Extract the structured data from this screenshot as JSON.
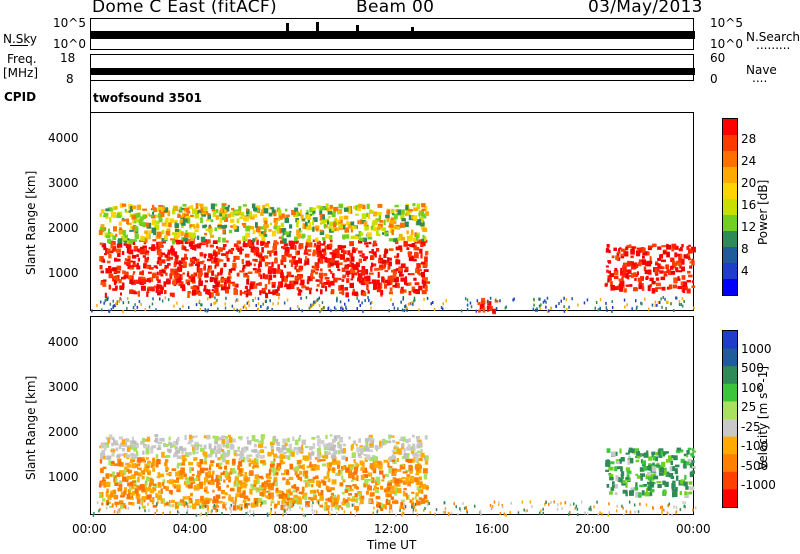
{
  "header": {
    "station": "Dome C East (fitACF)",
    "beam": "Beam 00",
    "date": "03/May/2013"
  },
  "strips": {
    "nsky": {
      "label": "N.Sky",
      "ticks_left": [
        "10^5",
        "10^0"
      ],
      "ticks_right": [
        "10^5",
        "10^0"
      ],
      "right_label": "N.Search",
      "right_dots": "........."
    },
    "freq": {
      "label_line1": "Freq.",
      "label_line2": "[MHz]",
      "ticks_left": [
        "18",
        "8"
      ],
      "ticks_right": [
        "60",
        "0"
      ],
      "right_label": "Nave",
      "right_dots": "...."
    },
    "cpid": {
      "label": "CPID",
      "value": "twofsound 3501"
    }
  },
  "x_axis": {
    "label": "Time UT",
    "ticks": [
      "00:00",
      "04:00",
      "08:00",
      "12:00",
      "16:00",
      "20:00",
      "00:00"
    ]
  },
  "chart_data": [
    {
      "type": "heatmap",
      "title": "",
      "xlabel": "Time UT",
      "ylabel": "Slant Range [km]",
      "x_range_hours": [
        0,
        24
      ],
      "ylim": [
        180,
        4600
      ],
      "y_ticks": [
        "4000",
        "3000",
        "2000",
        "1000"
      ],
      "colorbar": {
        "label": "Power [dB]",
        "ticks": [
          "28",
          "24",
          "20",
          "16",
          "12",
          "8",
          "4"
        ],
        "colors": [
          "#ff0000",
          "#ff3a00",
          "#ff7000",
          "#ffaa00",
          "#ffd400",
          "#c8e000",
          "#6fd021",
          "#2e8b57",
          "#1f5c9c",
          "#1f3dc8",
          "#0000ff"
        ]
      },
      "series": [
        {
          "start_h": 0.3,
          "end_h": 13.3,
          "range_min": 600,
          "range_max": 1800,
          "level": "high"
        },
        {
          "start_h": 0.3,
          "end_h": 13.3,
          "range_min": 1800,
          "range_max": 2600,
          "level": "mid"
        },
        {
          "start_h": 15.3,
          "end_h": 16.1,
          "range_min": 200,
          "range_max": 500,
          "level": "high"
        },
        {
          "start_h": 20.4,
          "end_h": 23.9,
          "range_min": 700,
          "range_max": 1700,
          "level": "high"
        }
      ]
    },
    {
      "type": "heatmap",
      "title": "",
      "xlabel": "Time UT",
      "ylabel": "Slant Range [km]",
      "x_range_hours": [
        0,
        24
      ],
      "ylim": [
        180,
        4600
      ],
      "y_ticks": [
        "4000",
        "3000",
        "2000",
        "1000"
      ],
      "colorbar": {
        "label": "Velocity [m s^-1]",
        "ticks": [
          "1000",
          "500",
          "100",
          "25",
          "-25",
          "-100",
          "-500",
          "-1000"
        ],
        "colors": [
          "#1f3dc8",
          "#1f5c9c",
          "#2e8b57",
          "#3cc43c",
          "#a8e060",
          "#c8c8c8",
          "#ffaa00",
          "#ff8000",
          "#ff4000",
          "#ff0000"
        ]
      },
      "series": [
        {
          "start_h": 0.3,
          "end_h": 13.3,
          "range_min": 400,
          "range_max": 1500,
          "level": "negative"
        },
        {
          "start_h": 0.3,
          "end_h": 13.3,
          "range_min": 1500,
          "range_max": 2000,
          "level": "near-zero"
        },
        {
          "start_h": 20.4,
          "end_h": 23.9,
          "range_min": 700,
          "range_max": 1700,
          "level": "positive"
        }
      ]
    }
  ]
}
